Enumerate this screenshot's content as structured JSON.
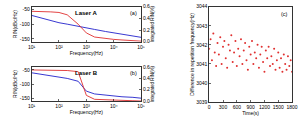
{
  "chart_data": [
    {
      "type": "line",
      "title": "Laser A",
      "annotations": [
        "(a)"
      ],
      "x_label": "Frequency(Hz)",
      "y_label": "RIN(dBc/Hz)",
      "y2_label": "Integrated RIN(%)",
      "log": "x",
      "x": [
        10,
        20,
        50,
        100,
        200,
        500,
        1000,
        2000,
        5000,
        10000,
        20000,
        50000,
        100000
      ],
      "series": [
        {
          "color": "#2222cc",
          "values": [
            -70,
            -78,
            -88,
            -95,
            -100,
            -108,
            -112,
            -118,
            -125,
            -130,
            -135,
            -140,
            -145
          ]
        },
        {
          "color": "#e03030",
          "axis": "y2",
          "values": [
            0.52,
            0.52,
            0.51,
            0.5,
            0.46,
            0.3,
            0.15,
            0.08,
            0.05,
            0.04,
            0.03,
            0.02,
            0.01
          ]
        }
      ],
      "xlim": [
        10,
        100000
      ],
      "xticks": [
        {
          "value": 10,
          "label": "10¹"
        },
        {
          "value": 100,
          "label": "10²"
        },
        {
          "value": 1000,
          "label": "10³"
        },
        {
          "value": 10000,
          "label": "10⁴"
        },
        {
          "value": 100000,
          "label": "10⁵"
        }
      ],
      "ylim": [
        -160,
        -40
      ],
      "yticks": [
        -150,
        -100,
        -50
      ],
      "y2lim": [
        0,
        0.6
      ],
      "y2ticks": [
        {
          "value": 0,
          "label": "0.0"
        },
        {
          "value": 0.2,
          "label": "0.2"
        },
        {
          "value": 0.4,
          "label": "0.4"
        },
        {
          "value": 0.6,
          "label": "0.6"
        }
      ],
      "grid": false
    },
    {
      "type": "line",
      "title": "Laser B",
      "annotations": [
        "(b)"
      ],
      "x_label": "Frequency(Hz)",
      "y_label": "RIN(dBc/Hz)",
      "y2_label": "Integrated RIN(%)",
      "log": "x",
      "x": [
        10,
        20,
        50,
        100,
        200,
        500,
        1000,
        2000,
        5000,
        10000,
        20000,
        50000,
        100000
      ],
      "series": [
        {
          "color": "#2222cc",
          "values": [
            -60,
            -65,
            -70,
            -75,
            -80,
            -90,
            -125,
            -135,
            -140,
            -142,
            -145,
            -147,
            -150
          ]
        },
        {
          "color": "#e03030",
          "axis": "y2",
          "values": [
            0.55,
            0.55,
            0.55,
            0.54,
            0.54,
            0.52,
            0.1,
            0.03,
            0.02,
            0.01,
            0.01,
            0.005,
            0
          ]
        }
      ],
      "xlim": [
        10,
        100000
      ],
      "xticks": [
        {
          "value": 10,
          "label": "10¹"
        },
        {
          "value": 100,
          "label": "10²"
        },
        {
          "value": 1000,
          "label": "10³"
        },
        {
          "value": 10000,
          "label": "10⁴"
        },
        {
          "value": 100000,
          "label": "10⁵"
        }
      ],
      "ylim": [
        -160,
        -40
      ],
      "yticks": [
        -150,
        -100,
        -50
      ],
      "y2lim": [
        0,
        0.6
      ],
      "y2ticks": [
        {
          "value": 0,
          "label": "0.0"
        },
        {
          "value": 0.2,
          "label": "0.2"
        },
        {
          "value": 0.4,
          "label": "0.4"
        },
        {
          "value": 0.6,
          "label": "0.6"
        }
      ],
      "grid": false
    },
    {
      "type": "scatter",
      "annotations": [
        "(c)"
      ],
      "x_label": "Time(s)",
      "y_label": "Difference in repetition frequency(Hz)",
      "color": "#e03030",
      "marker": "circle",
      "x": [
        0,
        30,
        60,
        90,
        120,
        150,
        180,
        210,
        240,
        270,
        300,
        330,
        360,
        390,
        420,
        450,
        480,
        510,
        540,
        570,
        600,
        630,
        660,
        690,
        720,
        750,
        780,
        810,
        840,
        870,
        900,
        930,
        960,
        990,
        1020,
        1050,
        1080,
        1110,
        1140,
        1170,
        1200,
        1230,
        1260,
        1290,
        1320,
        1350,
        1380,
        1410,
        1440,
        1470,
        1500,
        1530,
        1560,
        1590,
        1620,
        1650,
        1680,
        1710,
        1740,
        1770,
        1800
      ],
      "values": [
        3041.8,
        3042.3,
        3041.2,
        3042.6,
        3041.6,
        3040.9,
        3042.1,
        3041.5,
        3042.4,
        3041.0,
        3041.9,
        3042.2,
        3041.3,
        3040.8,
        3042.0,
        3041.7,
        3042.5,
        3041.1,
        3041.6,
        3042.2,
        3040.9,
        3041.8,
        3041.4,
        3042.3,
        3041.0,
        3041.7,
        3042.1,
        3041.2,
        3040.7,
        3041.9,
        3041.5,
        3042.2,
        3041.0,
        3041.6,
        3041.3,
        3042.0,
        3040.8,
        3041.5,
        3041.9,
        3041.1,
        3040.6,
        3041.7,
        3041.3,
        3041.9,
        3040.9,
        3041.4,
        3041.0,
        3041.8,
        3040.7,
        3041.2,
        3041.6,
        3040.8,
        3041.3,
        3040.6,
        3041.5,
        3041.0,
        3040.7,
        3041.4,
        3040.9,
        3041.2,
        3040.6
      ],
      "xlim": [
        0,
        1800
      ],
      "xticks": [
        0,
        300,
        600,
        900,
        1200,
        1500,
        1800
      ],
      "ylim": [
        3039,
        3044
      ],
      "yticks": [
        3039,
        3040,
        3041,
        3042,
        3043,
        3044
      ],
      "grid": false
    }
  ]
}
